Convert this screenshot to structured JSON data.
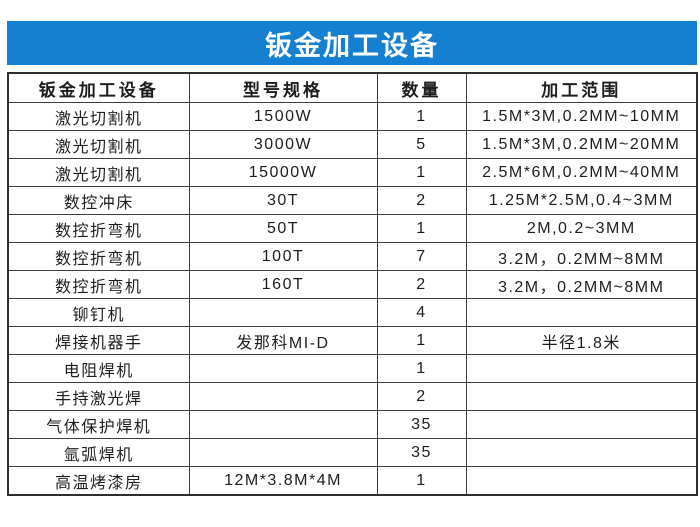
{
  "banner": {
    "title": "钣金加工设备",
    "bg_color": "#1580d2",
    "text_color": "#ffffff"
  },
  "table": {
    "headers": [
      "钣金加工设备",
      "型号规格",
      "数量",
      "加工范围"
    ],
    "rows": [
      [
        "激光切割机",
        "1500W",
        "1",
        "1.5M*3M,0.2MM~10MM"
      ],
      [
        "激光切割机",
        "3000W",
        "5",
        "1.5M*3M,0.2MM~20MM"
      ],
      [
        "激光切割机",
        "15000W",
        "1",
        "2.5M*6M,0.2MM~40MM"
      ],
      [
        "数控冲床",
        "30T",
        "2",
        "1.25M*2.5M,0.4~3MM"
      ],
      [
        "数控折弯机",
        "50T",
        "1",
        "2M,0.2~3MM"
      ],
      [
        "数控折弯机",
        "100T",
        "7",
        "3.2M，0.2MM~8MM"
      ],
      [
        "数控折弯机",
        "160T",
        "2",
        "3.2M，0.2MM~8MM"
      ],
      [
        "铆钉机",
        "",
        "4",
        ""
      ],
      [
        "焊接机器手",
        "发那科MI-D",
        "1",
        "半径1.8米"
      ],
      [
        "电阻焊机",
        "",
        "1",
        ""
      ],
      [
        "手持激光焊",
        "",
        "2",
        ""
      ],
      [
        "气体保护焊机",
        "",
        "35",
        ""
      ],
      [
        "氩弧焊机",
        "",
        "35",
        ""
      ],
      [
        "高温烤漆房",
        "12M*3.8M*4M",
        "1",
        ""
      ]
    ]
  }
}
